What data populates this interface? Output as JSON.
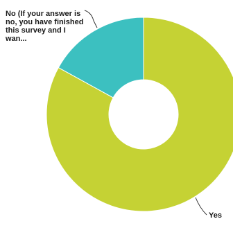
{
  "chart_data": {
    "type": "pie",
    "donut": true,
    "title": "",
    "categories": [
      "Yes",
      "No (If your answer is no, you have finished this survey and I wan..."
    ],
    "values": [
      83,
      17
    ],
    "colors": [
      "#c5d234",
      "#3cc0c0"
    ],
    "legend": "none",
    "labels": {
      "yes": "Yes",
      "no": "No (If your answer is no, you have finished this survey and I wan..."
    }
  }
}
